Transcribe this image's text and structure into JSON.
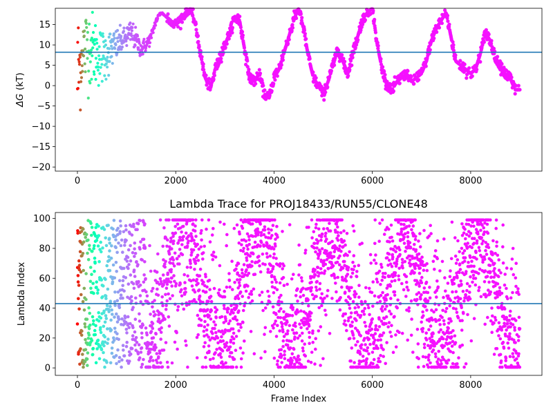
{
  "chart_data": [
    {
      "type": "scatter",
      "title": "",
      "xlabel": "",
      "ylabel_symbol": "ΔG",
      "ylabel": "(kT)",
      "xlim": [
        -450,
        9450
      ],
      "ylim": [
        -21.0,
        19.0
      ],
      "xticks": [
        0,
        2000,
        4000,
        6000,
        8000
      ],
      "xtick_labels": [
        "0",
        "2000",
        "4000",
        "6000",
        "8000"
      ],
      "yticks": [
        -20,
        -15,
        -10,
        -5,
        0,
        5,
        10,
        15
      ],
      "ytick_labels": [
        "−20",
        "−15",
        "−10",
        "−5",
        "0",
        "5",
        "10",
        "15"
      ],
      "hline": 8.2,
      "hline_color": "#1f77b4",
      "colormap": "rainbow (red at frame 0 → violet at later frames)",
      "grid": false,
      "trace_keypoints": {
        "x": [
          0,
          100,
          200,
          300,
          400,
          500,
          600,
          700,
          800,
          900,
          1000,
          1100,
          1200,
          1300,
          1400,
          1500,
          1600,
          1700,
          1800,
          1900,
          2000,
          2100,
          2200,
          2300,
          2400,
          2500,
          2600,
          2700,
          2800,
          2900,
          3000,
          3100,
          3200,
          3300,
          3400,
          3500,
          3600,
          3700,
          3800,
          3900,
          4000,
          4100,
          4200,
          4300,
          4400,
          4500,
          4600,
          4700,
          4800,
          4900,
          5000,
          5100,
          5200,
          5300,
          5400,
          5500,
          5600,
          5700,
          5800,
          5900,
          6000,
          6100,
          6200,
          6300,
          6400,
          6500,
          6600,
          6700,
          6800,
          6900,
          7000,
          7100,
          7200,
          7300,
          7400,
          7500,
          7600,
          7700,
          7800,
          7900,
          8000,
          8100,
          8200,
          8300,
          8400,
          8500,
          8600,
          8700,
          8800,
          8900,
          9000
        ],
        "y": [
          2,
          8,
          10,
          9,
          8,
          7,
          8,
          9,
          10,
          11,
          12,
          13,
          11,
          9,
          10,
          12,
          16,
          18,
          17,
          16,
          15,
          16,
          18,
          19,
          15,
          8,
          2,
          -1,
          4,
          7,
          10,
          13,
          17,
          16,
          9,
          2,
          1,
          3,
          -2,
          -3,
          2,
          4,
          8,
          12,
          16,
          19,
          14,
          7,
          2,
          0,
          -2,
          1,
          5,
          9,
          6,
          3,
          8,
          12,
          16,
          18,
          19,
          10,
          4,
          0,
          -1,
          1,
          2,
          3,
          1,
          2,
          3,
          6,
          11,
          14,
          16,
          18,
          12,
          6,
          5,
          4,
          3,
          4,
          8,
          13,
          11,
          7,
          5,
          3,
          2,
          -1,
          -1
        ]
      }
    },
    {
      "type": "scatter",
      "title": "Lambda Trace for PROJ18433/RUN55/CLONE48",
      "xlabel": "Frame Index",
      "ylabel": "Lambda Index",
      "xlim": [
        -450,
        9450
      ],
      "ylim": [
        -5,
        104
      ],
      "xticks": [
        0,
        2000,
        4000,
        6000,
        8000
      ],
      "xtick_labels": [
        "0",
        "2000",
        "4000",
        "6000",
        "8000"
      ],
      "yticks": [
        0,
        20,
        40,
        60,
        80,
        100
      ],
      "ytick_labels": [
        "0",
        "20",
        "40",
        "60",
        "80",
        "100"
      ],
      "hline": 43,
      "hline_color": "#1f77b4",
      "colormap": "rainbow (red at frame 0 → violet at later frames)",
      "grid": false,
      "frame_range": [
        0,
        9000
      ],
      "lambda_range": [
        0,
        99
      ]
    }
  ]
}
